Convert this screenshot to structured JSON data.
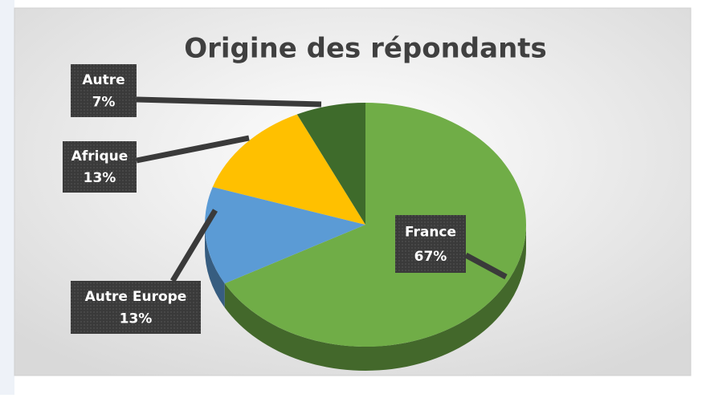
{
  "chart_data": {
    "type": "pie",
    "title": "Origine des répondants",
    "categories": [
      "France",
      "Autre Europe",
      "Afrique",
      "Autre"
    ],
    "values": [
      67,
      13,
      13,
      7
    ],
    "value_labels": [
      "67%",
      "13%",
      "13%",
      "7%"
    ],
    "colors": [
      "#70ad47",
      "#5b9bd5",
      "#ffc000",
      "#3e6b2b"
    ]
  }
}
